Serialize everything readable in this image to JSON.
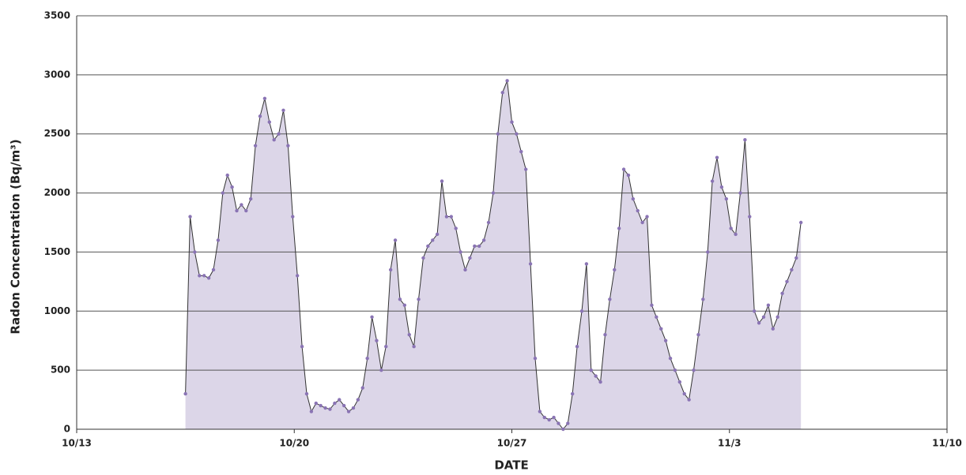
{
  "chart_data": {
    "type": "area",
    "xlabel": "DATE",
    "ylabel": "Radon Concentration (Bq/m³)",
    "xlim": [
      0,
      28
    ],
    "xticks": [
      {
        "value": 0,
        "label": "10/13"
      },
      {
        "value": 7,
        "label": "10/20"
      },
      {
        "value": 14,
        "label": "10/27"
      },
      {
        "value": 21,
        "label": "11/3"
      },
      {
        "value": 28,
        "label": "11/10"
      }
    ],
    "ylim": [
      0,
      3500
    ],
    "yticks": [
      0,
      500,
      1000,
      1500,
      2000,
      2500,
      3000,
      3500
    ],
    "grid": true,
    "color": "#8a74b4",
    "fill_color": "#dcd6e8",
    "x": [
      3.5,
      3.65,
      3.8,
      3.95,
      4.1,
      4.25,
      4.4,
      4.55,
      4.7,
      4.85,
      5,
      5.15,
      5.3,
      5.45,
      5.6,
      5.75,
      5.9,
      6.05,
      6.2,
      6.35,
      6.5,
      6.65,
      6.8,
      6.95,
      7.1,
      7.25,
      7.4,
      7.55,
      7.7,
      7.85,
      8,
      8.15,
      8.3,
      8.45,
      8.6,
      8.75,
      8.9,
      9.05,
      9.2,
      9.35,
      9.5,
      9.65,
      9.8,
      9.95,
      10.1,
      10.25,
      10.4,
      10.55,
      10.7,
      10.85,
      11,
      11.15,
      11.3,
      11.45,
      11.6,
      11.75,
      11.9,
      12.05,
      12.2,
      12.35,
      12.5,
      12.65,
      12.8,
      12.95,
      13.1,
      13.25,
      13.4,
      13.55,
      13.7,
      13.85,
      14,
      14.15,
      14.3,
      14.45,
      14.6,
      14.75,
      14.9,
      15.05,
      15.2,
      15.35,
      15.5,
      15.65,
      15.8,
      15.95,
      16.1,
      16.25,
      16.4,
      16.55,
      16.7,
      16.85,
      17,
      17.15,
      17.3,
      17.45,
      17.6,
      17.75,
      17.9,
      18.05,
      18.2,
      18.35,
      18.5,
      18.65,
      18.8,
      18.95,
      19.1,
      19.25,
      19.4,
      19.55,
      19.7,
      19.85,
      20,
      20.15,
      20.3,
      20.45,
      20.6,
      20.75,
      20.9,
      21.05,
      21.2,
      21.35,
      21.5,
      21.65,
      21.8,
      21.95,
      22.1,
      22.25,
      22.4,
      22.55,
      22.7,
      22.85,
      23,
      23.15,
      23.3
    ],
    "values": [
      300,
      1800,
      1500,
      1300,
      1300,
      1280,
      1350,
      1600,
      2000,
      2150,
      2050,
      1850,
      1900,
      1850,
      1950,
      2400,
      2650,
      2800,
      2600,
      2450,
      2500,
      2700,
      2400,
      1800,
      1300,
      700,
      300,
      150,
      220,
      200,
      180,
      170,
      220,
      250,
      200,
      150,
      180,
      250,
      350,
      600,
      950,
      750,
      500,
      700,
      1350,
      1600,
      1100,
      1050,
      800,
      700,
      1100,
      1450,
      1550,
      1600,
      1650,
      2100,
      1800,
      1800,
      1700,
      1500,
      1350,
      1450,
      1550,
      1550,
      1600,
      1750,
      2000,
      2500,
      2850,
      2950,
      2600,
      2500,
      2350,
      2200,
      1400,
      600,
      150,
      100,
      80,
      100,
      50,
      0,
      50,
      300,
      700,
      1000,
      1400,
      500,
      450,
      400,
      800,
      1100,
      1350,
      1700,
      2200,
      2150,
      1950,
      1850,
      1750,
      1800,
      1050,
      950,
      850,
      750,
      600,
      500,
      400,
      300,
      250,
      500,
      800,
      1100,
      1500,
      2100,
      2300,
      2050,
      1950,
      1700,
      1650,
      2000,
      2450,
      1800,
      1000,
      900,
      950,
      1050,
      850,
      950,
      1150,
      1250,
      1350,
      1450,
      1750
    ]
  }
}
